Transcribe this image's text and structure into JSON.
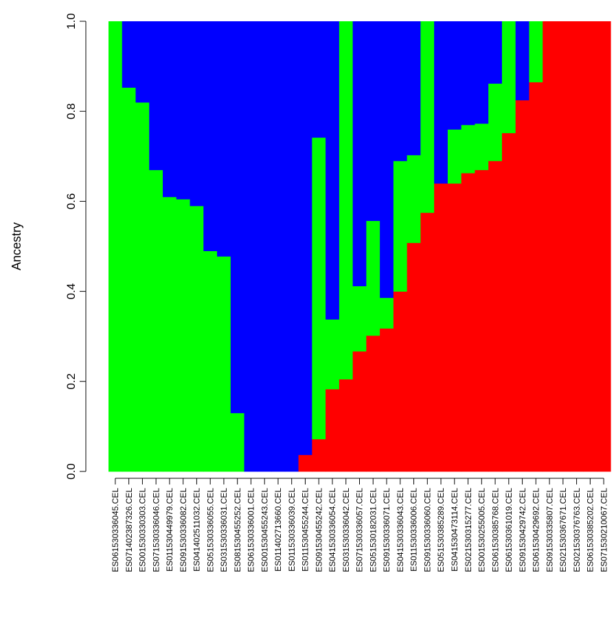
{
  "chart_data": {
    "type": "stacked_bar",
    "ylabel": "Ancestry",
    "ylim": [
      0,
      1
    ],
    "yticks": [
      "0.0",
      "0.2",
      "0.4",
      "0.6",
      "0.8",
      "1.0"
    ],
    "colors": {
      "red": "#ff0000",
      "green": "#00ff00",
      "blue": "#0000ff"
    },
    "series_order": [
      "red",
      "green",
      "blue"
    ],
    "samples": [
      {
        "name": "ES061530336045.CEL",
        "red": 0.0,
        "green": 1.0,
        "blue": 0.0
      },
      {
        "name": "ES071402387326.CEL",
        "red": 0.0,
        "green": 0.853,
        "blue": 0.147
      },
      {
        "name": "ES001530330303.CEL",
        "red": 0.0,
        "green": 0.82,
        "blue": 0.18
      },
      {
        "name": "ES071530336046.CEL",
        "red": 0.0,
        "green": 0.67,
        "blue": 0.33
      },
      {
        "name": "ES011530449979.CEL",
        "red": 0.0,
        "green": 0.61,
        "blue": 0.39
      },
      {
        "name": "ES091530336082.CEL",
        "red": 0.0,
        "green": 0.605,
        "blue": 0.395
      },
      {
        "name": "ES041402511032.CEL",
        "red": 0.0,
        "green": 0.59,
        "blue": 0.41
      },
      {
        "name": "ES051530336055.CEL",
        "red": 0.0,
        "green": 0.49,
        "blue": 0.51
      },
      {
        "name": "ES031530336031.CEL",
        "red": 0.0,
        "green": 0.478,
        "blue": 0.522
      },
      {
        "name": "ES081530455252.CEL",
        "red": 0.0,
        "green": 0.13,
        "blue": 0.87
      },
      {
        "name": "ES061530336001.CEL",
        "red": 0.0,
        "green": 0.0,
        "blue": 1.0
      },
      {
        "name": "ES001530455243.CEL",
        "red": 0.0,
        "green": 0.0,
        "blue": 1.0
      },
      {
        "name": "ES011402713660.CEL",
        "red": 0.0,
        "green": 0.0,
        "blue": 1.0
      },
      {
        "name": "ES011530336039.CEL",
        "red": 0.0,
        "green": 0.0,
        "blue": 1.0
      },
      {
        "name": "ES011530455244.CEL",
        "red": 0.037,
        "green": 0.0,
        "blue": 0.963
      },
      {
        "name": "ES091530455242.CEL",
        "red": 0.072,
        "green": 0.67,
        "blue": 0.258
      },
      {
        "name": "ES041530336054.CEL",
        "red": 0.183,
        "green": 0.155,
        "blue": 0.662
      },
      {
        "name": "ES031530336042.CEL",
        "red": 0.205,
        "green": 0.795,
        "blue": 0.0
      },
      {
        "name": "ES071530336057.CEL",
        "red": 0.267,
        "green": 0.145,
        "blue": 0.588
      },
      {
        "name": "ES051530182031.CEL",
        "red": 0.302,
        "green": 0.255,
        "blue": 0.443
      },
      {
        "name": "ES091530336071.CEL",
        "red": 0.318,
        "green": 0.068,
        "blue": 0.614
      },
      {
        "name": "ES041530336043.CEL",
        "red": 0.4,
        "green": 0.29,
        "blue": 0.31
      },
      {
        "name": "ES011530336006.CEL",
        "red": 0.508,
        "green": 0.195,
        "blue": 0.297
      },
      {
        "name": "ES091530336060.CEL",
        "red": 0.575,
        "green": 0.425,
        "blue": 0.0
      },
      {
        "name": "ES051530385289.CEL",
        "red": 0.64,
        "green": 0.0,
        "blue": 0.36
      },
      {
        "name": "ES041530473114.CEL",
        "red": 0.64,
        "green": 0.12,
        "blue": 0.24
      },
      {
        "name": "ES021530315277.CEL",
        "red": 0.663,
        "green": 0.107,
        "blue": 0.23
      },
      {
        "name": "ES001530255005.CEL",
        "red": 0.67,
        "green": 0.103,
        "blue": 0.227
      },
      {
        "name": "ES061530385768.CEL",
        "red": 0.69,
        "green": 0.172,
        "blue": 0.138
      },
      {
        "name": "ES061530361019.CEL",
        "red": 0.752,
        "green": 0.248,
        "blue": 0.0
      },
      {
        "name": "ES091530429742.CEL",
        "red": 0.825,
        "green": 0.0,
        "blue": 0.175
      },
      {
        "name": "ES061530429692.CEL",
        "red": 0.865,
        "green": 0.135,
        "blue": 0.0
      },
      {
        "name": "ES091530335807.CEL",
        "red": 1.0,
        "green": 0.0,
        "blue": 0.0
      },
      {
        "name": "ES021530367671.CEL",
        "red": 1.0,
        "green": 0.0,
        "blue": 0.0
      },
      {
        "name": "ES021530376763.CEL",
        "red": 1.0,
        "green": 0.0,
        "blue": 0.0
      },
      {
        "name": "ES061530385202.CEL",
        "red": 1.0,
        "green": 0.0,
        "blue": 0.0
      },
      {
        "name": "ES071530210067.CEL",
        "red": 1.0,
        "green": 0.0,
        "blue": 0.0
      }
    ]
  }
}
